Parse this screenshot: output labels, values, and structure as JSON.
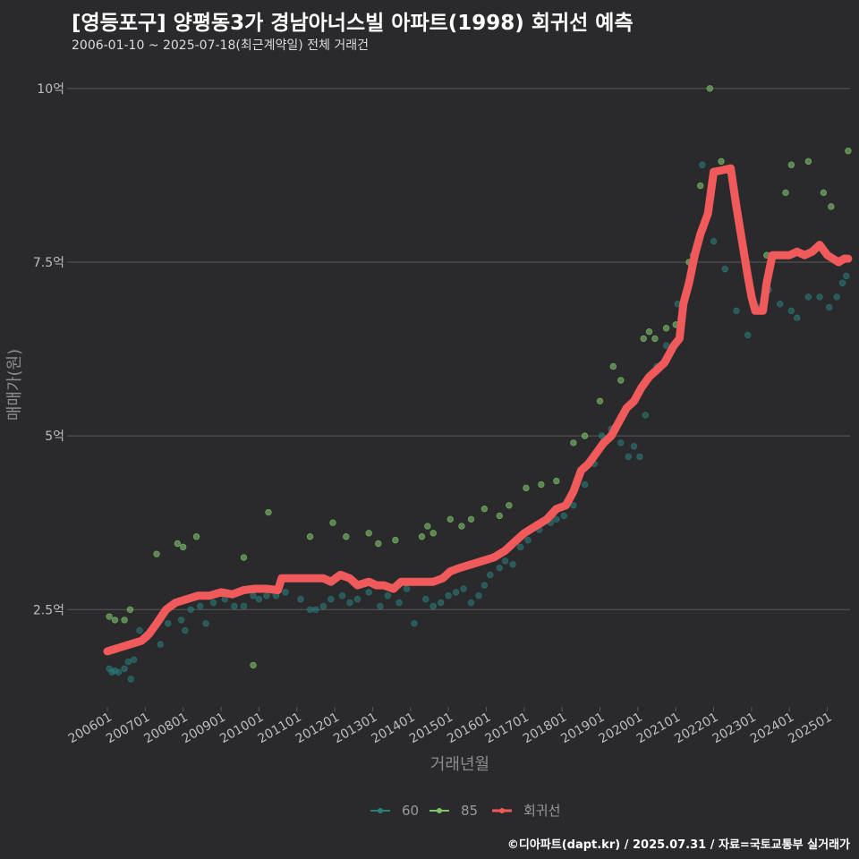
{
  "header": {
    "title": "[영등포구] 양평동3가 경남아너스빌 아파트(1998) 회귀선 예측",
    "subtitle": "2006-01-10 ~ 2025-07-18(최근계약일) 전체 거래건"
  },
  "footer": {
    "credit": "©디아파트(dapt.kr) / 2025.07.31 / 자료=국토교통부 실거래가"
  },
  "colors": {
    "s60": "#2a7f80",
    "s85": "#7ec46a",
    "trend": "#f15a5a",
    "grid": "#5a5a5a",
    "bg": "#2a2a2c"
  },
  "chart_data": {
    "type": "scatter",
    "xlabel": "거래년월",
    "ylabel": "매매가(원)",
    "x_range": [
      2006.0,
      2025.6
    ],
    "ylim": [
      1.1,
      10.5
    ],
    "y_ticks": [
      {
        "value": 2.5,
        "label": "2.5억"
      },
      {
        "value": 5,
        "label": "5억"
      },
      {
        "value": 7.5,
        "label": "7.5억"
      },
      {
        "value": 10,
        "label": "10억"
      }
    ],
    "x_ticks": [
      {
        "value": 2006.0,
        "label": "200601"
      },
      {
        "value": 2007.0,
        "label": "200701"
      },
      {
        "value": 2008.0,
        "label": "200801"
      },
      {
        "value": 2009.0,
        "label": "200901"
      },
      {
        "value": 2010.0,
        "label": "201001"
      },
      {
        "value": 2011.0,
        "label": "201101"
      },
      {
        "value": 2012.0,
        "label": "201201"
      },
      {
        "value": 2013.0,
        "label": "201301"
      },
      {
        "value": 2014.0,
        "label": "201401"
      },
      {
        "value": 2015.0,
        "label": "201501"
      },
      {
        "value": 2016.0,
        "label": "201601"
      },
      {
        "value": 2017.0,
        "label": "201701"
      },
      {
        "value": 2018.0,
        "label": "201801"
      },
      {
        "value": 2019.0,
        "label": "201901"
      },
      {
        "value": 2020.0,
        "label": "202001"
      },
      {
        "value": 2021.0,
        "label": "202101"
      },
      {
        "value": 2022.0,
        "label": "202201"
      },
      {
        "value": 2023.0,
        "label": "202301"
      },
      {
        "value": 2024.0,
        "label": "202401"
      },
      {
        "value": 2025.0,
        "label": "202501"
      }
    ],
    "legend": {
      "placement": "bottom"
    },
    "series": [
      {
        "name": "60",
        "points": [
          [
            2006.05,
            1.65
          ],
          [
            2006.12,
            1.6
          ],
          [
            2006.2,
            1.62
          ],
          [
            2006.3,
            1.6
          ],
          [
            2006.45,
            1.65
          ],
          [
            2006.55,
            1.75
          ],
          [
            2006.62,
            1.5
          ],
          [
            2006.7,
            1.78
          ],
          [
            2006.85,
            2.2
          ],
          [
            2007.05,
            2.1
          ],
          [
            2007.4,
            2.0
          ],
          [
            2007.6,
            2.3
          ],
          [
            2007.95,
            2.35
          ],
          [
            2008.05,
            2.2
          ],
          [
            2008.2,
            2.5
          ],
          [
            2008.45,
            2.55
          ],
          [
            2008.6,
            2.3
          ],
          [
            2008.8,
            2.6
          ],
          [
            2009.1,
            2.65
          ],
          [
            2009.35,
            2.55
          ],
          [
            2009.6,
            2.55
          ],
          [
            2009.85,
            2.7
          ],
          [
            2010.0,
            2.65
          ],
          [
            2010.2,
            2.7
          ],
          [
            2010.45,
            2.7
          ],
          [
            2010.7,
            2.75
          ],
          [
            2011.1,
            2.65
          ],
          [
            2011.35,
            2.5
          ],
          [
            2011.5,
            2.5
          ],
          [
            2011.7,
            2.55
          ],
          [
            2011.9,
            2.65
          ],
          [
            2012.2,
            2.7
          ],
          [
            2012.4,
            2.6
          ],
          [
            2012.6,
            2.65
          ],
          [
            2012.9,
            2.75
          ],
          [
            2013.2,
            2.55
          ],
          [
            2013.4,
            2.7
          ],
          [
            2013.7,
            2.6
          ],
          [
            2013.9,
            2.8
          ],
          [
            2014.1,
            2.3
          ],
          [
            2014.4,
            2.65
          ],
          [
            2014.6,
            2.55
          ],
          [
            2014.8,
            2.6
          ],
          [
            2015.0,
            2.7
          ],
          [
            2015.2,
            2.75
          ],
          [
            2015.4,
            2.8
          ],
          [
            2015.6,
            2.6
          ],
          [
            2015.8,
            2.7
          ],
          [
            2015.95,
            2.85
          ],
          [
            2016.1,
            3.0
          ],
          [
            2016.35,
            3.1
          ],
          [
            2016.5,
            3.2
          ],
          [
            2016.7,
            3.15
          ],
          [
            2016.9,
            3.4
          ],
          [
            2017.1,
            3.5
          ],
          [
            2017.4,
            3.65
          ],
          [
            2017.7,
            3.75
          ],
          [
            2017.85,
            3.8
          ],
          [
            2018.05,
            3.85
          ],
          [
            2018.3,
            4.0
          ],
          [
            2018.6,
            4.3
          ],
          [
            2018.85,
            4.6
          ],
          [
            2019.05,
            5.0
          ],
          [
            2019.3,
            5.1
          ],
          [
            2019.55,
            4.9
          ],
          [
            2019.75,
            4.7
          ],
          [
            2019.9,
            4.85
          ],
          [
            2020.05,
            4.7
          ],
          [
            2020.2,
            5.3
          ],
          [
            2020.5,
            6.0
          ],
          [
            2020.75,
            6.3
          ],
          [
            2021.05,
            6.9
          ],
          [
            2021.45,
            7.6
          ],
          [
            2021.7,
            8.9
          ],
          [
            2022.0,
            7.8
          ],
          [
            2022.3,
            7.4
          ],
          [
            2022.6,
            6.8
          ],
          [
            2022.9,
            6.45
          ],
          [
            2023.2,
            6.85
          ],
          [
            2023.45,
            7.1
          ],
          [
            2023.75,
            6.9
          ],
          [
            2024.05,
            6.8
          ],
          [
            2024.2,
            6.7
          ],
          [
            2024.5,
            7.0
          ],
          [
            2024.8,
            7.0
          ],
          [
            2025.05,
            6.85
          ],
          [
            2025.25,
            7.0
          ],
          [
            2025.4,
            7.2
          ],
          [
            2025.5,
            7.3
          ]
        ]
      },
      {
        "name": "85",
        "points": [
          [
            2006.05,
            2.4
          ],
          [
            2006.2,
            2.35
          ],
          [
            2006.45,
            2.35
          ],
          [
            2006.6,
            2.5
          ],
          [
            2007.3,
            3.3
          ],
          [
            2007.85,
            3.45
          ],
          [
            2008.0,
            3.4
          ],
          [
            2008.35,
            3.55
          ],
          [
            2009.6,
            3.25
          ],
          [
            2009.85,
            1.7
          ],
          [
            2010.25,
            3.9
          ],
          [
            2011.35,
            3.55
          ],
          [
            2011.95,
            3.75
          ],
          [
            2012.3,
            3.55
          ],
          [
            2012.9,
            3.6
          ],
          [
            2013.15,
            3.45
          ],
          [
            2013.6,
            3.5
          ],
          [
            2014.3,
            3.55
          ],
          [
            2014.45,
            3.7
          ],
          [
            2014.6,
            3.6
          ],
          [
            2015.05,
            3.8
          ],
          [
            2015.35,
            3.7
          ],
          [
            2015.6,
            3.8
          ],
          [
            2015.95,
            3.95
          ],
          [
            2016.35,
            3.85
          ],
          [
            2016.6,
            4.0
          ],
          [
            2017.05,
            4.25
          ],
          [
            2017.45,
            4.3
          ],
          [
            2017.85,
            4.35
          ],
          [
            2018.3,
            4.9
          ],
          [
            2018.6,
            5.0
          ],
          [
            2019.0,
            5.5
          ],
          [
            2019.35,
            6.0
          ],
          [
            2019.55,
            5.8
          ],
          [
            2020.15,
            6.4
          ],
          [
            2020.3,
            6.5
          ],
          [
            2020.45,
            6.4
          ],
          [
            2020.75,
            6.55
          ],
          [
            2021.0,
            6.6
          ],
          [
            2021.35,
            7.5
          ],
          [
            2021.65,
            8.6
          ],
          [
            2021.9,
            10.0
          ],
          [
            2022.2,
            8.95
          ],
          [
            2023.4,
            7.6
          ],
          [
            2023.6,
            7.6
          ],
          [
            2023.9,
            8.5
          ],
          [
            2024.05,
            8.9
          ],
          [
            2024.5,
            8.95
          ],
          [
            2024.9,
            8.5
          ],
          [
            2025.1,
            8.3
          ],
          [
            2025.55,
            9.1
          ]
        ]
      },
      {
        "name": "회귀선",
        "points": [
          [
            2006.0,
            1.9
          ],
          [
            2006.3,
            1.95
          ],
          [
            2006.6,
            2.0
          ],
          [
            2006.9,
            2.05
          ],
          [
            2007.1,
            2.15
          ],
          [
            2007.3,
            2.3
          ],
          [
            2007.55,
            2.5
          ],
          [
            2007.8,
            2.6
          ],
          [
            2008.1,
            2.65
          ],
          [
            2008.4,
            2.7
          ],
          [
            2008.7,
            2.7
          ],
          [
            2009.0,
            2.75
          ],
          [
            2009.3,
            2.72
          ],
          [
            2009.6,
            2.78
          ],
          [
            2009.9,
            2.8
          ],
          [
            2010.2,
            2.8
          ],
          [
            2010.5,
            2.78
          ],
          [
            2010.6,
            2.95
          ],
          [
            2010.8,
            2.95
          ],
          [
            2011.1,
            2.95
          ],
          [
            2011.4,
            2.95
          ],
          [
            2011.7,
            2.95
          ],
          [
            2011.9,
            2.9
          ],
          [
            2012.15,
            3.0
          ],
          [
            2012.4,
            2.95
          ],
          [
            2012.6,
            2.85
          ],
          [
            2012.9,
            2.9
          ],
          [
            2013.1,
            2.85
          ],
          [
            2013.3,
            2.85
          ],
          [
            2013.55,
            2.8
          ],
          [
            2013.75,
            2.9
          ],
          [
            2014.0,
            2.9
          ],
          [
            2014.3,
            2.9
          ],
          [
            2014.6,
            2.9
          ],
          [
            2014.85,
            2.95
          ],
          [
            2015.05,
            3.05
          ],
          [
            2015.3,
            3.1
          ],
          [
            2015.6,
            3.15
          ],
          [
            2015.9,
            3.2
          ],
          [
            2016.2,
            3.25
          ],
          [
            2016.5,
            3.35
          ],
          [
            2016.8,
            3.5
          ],
          [
            2017.0,
            3.6
          ],
          [
            2017.3,
            3.7
          ],
          [
            2017.6,
            3.8
          ],
          [
            2017.85,
            3.95
          ],
          [
            2018.1,
            4.0
          ],
          [
            2018.3,
            4.2
          ],
          [
            2018.5,
            4.5
          ],
          [
            2018.7,
            4.6
          ],
          [
            2018.9,
            4.75
          ],
          [
            2019.1,
            4.9
          ],
          [
            2019.3,
            5.0
          ],
          [
            2019.5,
            5.2
          ],
          [
            2019.7,
            5.4
          ],
          [
            2019.9,
            5.5
          ],
          [
            2020.1,
            5.7
          ],
          [
            2020.3,
            5.85
          ],
          [
            2020.5,
            5.95
          ],
          [
            2020.7,
            6.05
          ],
          [
            2020.95,
            6.3
          ],
          [
            2021.1,
            6.4
          ],
          [
            2021.2,
            6.9
          ],
          [
            2021.35,
            7.2
          ],
          [
            2021.5,
            7.6
          ],
          [
            2021.65,
            7.9
          ],
          [
            2021.85,
            8.2
          ],
          [
            2022.0,
            8.8
          ],
          [
            2022.2,
            8.82
          ],
          [
            2022.45,
            8.85
          ],
          [
            2022.6,
            8.3
          ],
          [
            2022.75,
            7.8
          ],
          [
            2022.9,
            7.3
          ],
          [
            2023.0,
            7.0
          ],
          [
            2023.1,
            6.8
          ],
          [
            2023.3,
            6.8
          ],
          [
            2023.4,
            7.2
          ],
          [
            2023.55,
            7.6
          ],
          [
            2023.8,
            7.6
          ],
          [
            2024.0,
            7.6
          ],
          [
            2024.2,
            7.65
          ],
          [
            2024.4,
            7.6
          ],
          [
            2024.6,
            7.65
          ],
          [
            2024.8,
            7.75
          ],
          [
            2025.0,
            7.6
          ],
          [
            2025.15,
            7.55
          ],
          [
            2025.3,
            7.5
          ],
          [
            2025.45,
            7.55
          ],
          [
            2025.55,
            7.55
          ]
        ]
      }
    ]
  }
}
